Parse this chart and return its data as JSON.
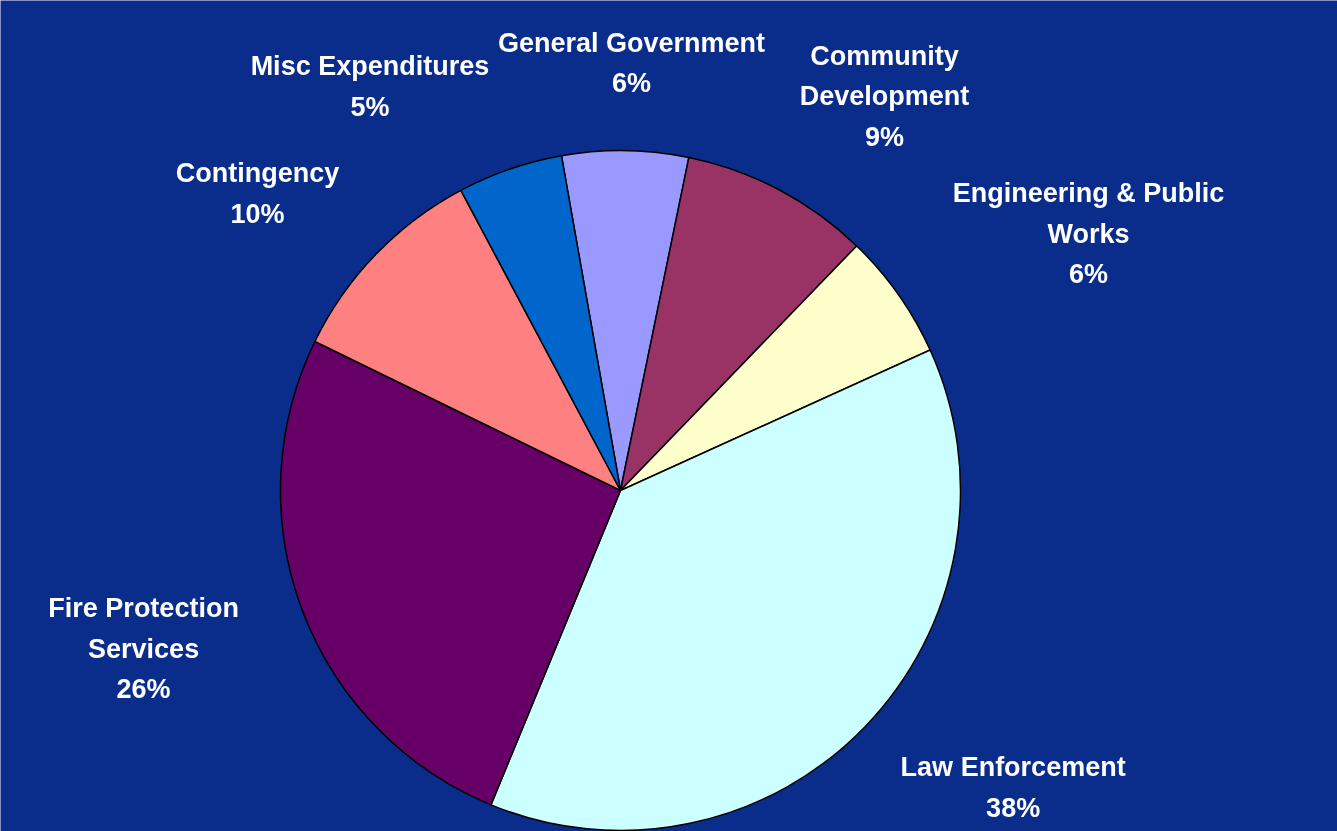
{
  "chart_data": {
    "type": "pie",
    "categories": [
      "General Government",
      "Community Development",
      "Engineering & Public Works",
      "Law Enforcement",
      "Fire Protection Services",
      "Contingency",
      "Misc Expenditures"
    ],
    "values": [
      6,
      9,
      6,
      38,
      26,
      10,
      5
    ],
    "value_labels": [
      "6%",
      "9%",
      "6%",
      "38%",
      "26%",
      "10%",
      "5%"
    ],
    "colors": [
      "#9999ff",
      "#993366",
      "#ffffcc",
      "#ccffff",
      "#660066",
      "#ff8080",
      "#0066cc"
    ]
  }
}
